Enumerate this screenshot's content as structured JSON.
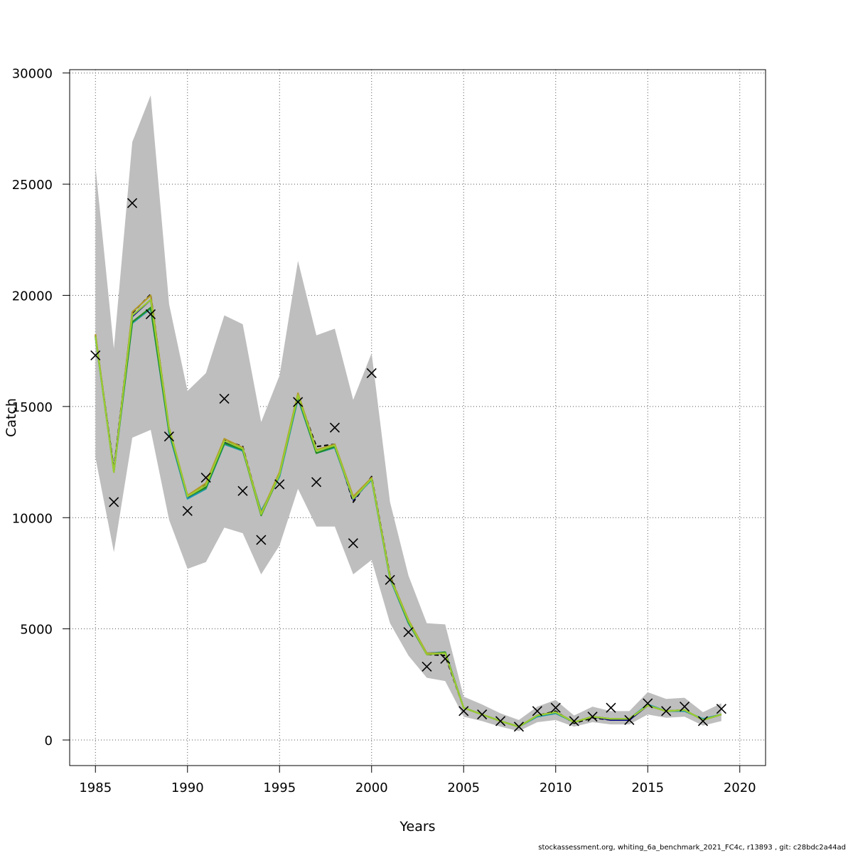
{
  "chart_data": {
    "type": "line",
    "title": "",
    "xlabel": "Years",
    "ylabel": "Catch",
    "xlim": [
      1983.6,
      2021.4
    ],
    "ylim": [
      -1150,
      30150
    ],
    "x_ticks": [
      1985,
      1990,
      1995,
      2000,
      2005,
      2010,
      2015,
      2020
    ],
    "y_ticks": [
      0,
      5000,
      10000,
      15000,
      20000,
      25000,
      30000
    ],
    "grid": true,
    "band_color": "#bebebe",
    "years": [
      1985,
      1986,
      1987,
      1988,
      1989,
      1990,
      1991,
      1992,
      1993,
      1994,
      1995,
      1996,
      1997,
      1998,
      1999,
      2000,
      2001,
      2002,
      2003,
      2004,
      2005,
      2006,
      2007,
      2008,
      2009,
      2010,
      2011,
      2012,
      2013,
      2014,
      2015,
      2016,
      2017,
      2018,
      2019
    ],
    "band_upper": [
      25800,
      17600,
      26900,
      29000,
      19600,
      15700,
      16500,
      19100,
      18700,
      14300,
      16400,
      21550,
      18200,
      18500,
      15300,
      17400,
      10700,
      7400,
      5250,
      5200,
      1950,
      1600,
      1200,
      900,
      1500,
      1800,
      1100,
      1500,
      1300,
      1300,
      2150,
      1850,
      1900,
      1250,
      1650
    ],
    "band_lower": [
      12700,
      8450,
      13600,
      13950,
      9900,
      7700,
      8000,
      9550,
      9300,
      7450,
      8750,
      11300,
      9600,
      9600,
      7450,
      8100,
      5250,
      3800,
      2800,
      2650,
      1050,
      850,
      600,
      400,
      800,
      900,
      600,
      800,
      700,
      700,
      1150,
      1000,
      1050,
      650,
      850
    ],
    "series": [
      {
        "color": "#000000",
        "dashed": true,
        "values": [
          18200,
          12200,
          19200,
          20050,
          14000,
          11000,
          11500,
          13500,
          13200,
          10200,
          12000,
          15500,
          13200,
          13300,
          10700,
          11850,
          7400,
          5350,
          3850,
          3800,
          1450,
          1150,
          850,
          600,
          1100,
          1300,
          750,
          1000,
          900,
          900,
          1550,
          1300,
          1350,
          900,
          1150
        ]
      },
      {
        "color": "#00008b",
        "dashed": false,
        "values": [
          18150,
          12100,
          19050,
          19800,
          13900,
          10900,
          11400,
          13400,
          13100,
          10150,
          11900,
          15400,
          13050,
          13200,
          10800,
          11750,
          7300,
          5300,
          3850,
          3900,
          1450,
          1150,
          850,
          600,
          1100,
          1250,
          800,
          1050,
          900,
          900,
          1550,
          1300,
          1350,
          900,
          1150
        ]
      },
      {
        "color": "#1f9aa8",
        "dashed": false,
        "values": [
          18100,
          12050,
          18750,
          19400,
          13800,
          10850,
          11300,
          13300,
          13000,
          10300,
          11850,
          15350,
          12900,
          13150,
          10850,
          11700,
          7250,
          5250,
          3900,
          3950,
          1450,
          1150,
          850,
          600,
          1050,
          1200,
          800,
          1050,
          950,
          950,
          1600,
          1300,
          1300,
          950,
          1150
        ]
      },
      {
        "color": "#228b22",
        "dashed": false,
        "values": [
          18200,
          12100,
          18800,
          19450,
          13900,
          10950,
          11350,
          13350,
          13050,
          10100,
          11950,
          15450,
          12900,
          13200,
          10900,
          11750,
          7300,
          5300,
          3850,
          3950,
          1450,
          1150,
          850,
          600,
          1100,
          1250,
          800,
          1050,
          950,
          950,
          1550,
          1300,
          1350,
          900,
          1150
        ]
      },
      {
        "color": "#b39b29",
        "dashed": false,
        "values": [
          18250,
          12050,
          19250,
          20000,
          14050,
          11000,
          11550,
          13550,
          13150,
          10200,
          12050,
          15600,
          13050,
          13300,
          10950,
          11800,
          7350,
          5400,
          3900,
          3900,
          1450,
          1150,
          850,
          600,
          1100,
          1250,
          800,
          1050,
          950,
          950,
          1550,
          1300,
          1350,
          900,
          1150
        ]
      },
      {
        "color": "#9acd32",
        "dashed": false,
        "values": [
          18150,
          12050,
          19100,
          19800,
          14000,
          10950,
          11450,
          13450,
          13100,
          10150,
          11950,
          15500,
          13000,
          13250,
          10850,
          11750,
          7300,
          5350,
          3850,
          3900,
          1450,
          1150,
          850,
          600,
          1100,
          1250,
          800,
          1050,
          950,
          950,
          1550,
          1300,
          1350,
          900,
          1150
        ]
      }
    ],
    "observed": {
      "marker": "x",
      "values": [
        17300,
        10700,
        24150,
        19150,
        13650,
        10300,
        11800,
        15350,
        11200,
        9000,
        11500,
        15200,
        11600,
        14050,
        8850,
        16500,
        7200,
        4850,
        3300,
        3650,
        1300,
        1150,
        850,
        600,
        1300,
        1450,
        850,
        1050,
        1450,
        900,
        1650,
        1300,
        1500,
        850,
        1400
      ]
    }
  },
  "footer": {
    "text": "stockassessment.org, whiting_6a_benchmark_2021_FC4c, r13893 , git: c28bdc2a44ad"
  }
}
